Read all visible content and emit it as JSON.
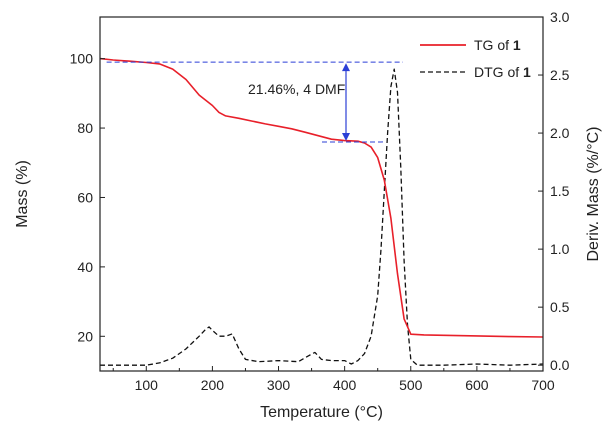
{
  "chart_data": {
    "type": "line",
    "xlabel": "Temperature (°C)",
    "ylabel_left": "Mass (%)",
    "ylabel_right": "Deriv. Mass (%/°C)",
    "xlim": [
      30,
      700
    ],
    "ylim_left": [
      10,
      112
    ],
    "ylim_right": [
      -0.05,
      3.0
    ],
    "x_ticks": [
      100,
      200,
      300,
      400,
      500,
      600,
      700
    ],
    "y_left_ticks": [
      20,
      40,
      60,
      80,
      100
    ],
    "y_right_ticks": [
      0.0,
      0.5,
      1.0,
      1.5,
      2.0,
      2.5,
      3.0
    ],
    "x_tick_labels": [
      "100",
      "200",
      "300",
      "400",
      "500",
      "600",
      "700"
    ],
    "y_left_tick_labels": [
      "20",
      "40",
      "60",
      "80",
      "100"
    ],
    "y_right_tick_labels": [
      "0.0",
      "0.5",
      "1.0",
      "1.5",
      "2.0",
      "2.5",
      "3.0"
    ],
    "legend_position": "top-right",
    "annotation": {
      "text": "21.46%, 4 DMF",
      "from_value": 99,
      "to_value": 76,
      "x": 410
    },
    "series": [
      {
        "name": "TG of 1",
        "legend_prefix": "TG of ",
        "legend_bold": "1",
        "axis": "left",
        "color": "#e8202a",
        "dash": "solid",
        "x": [
          30,
          50,
          80,
          100,
          120,
          140,
          160,
          180,
          200,
          210,
          220,
          240,
          260,
          280,
          300,
          320,
          340,
          360,
          380,
          400,
          420,
          430,
          440,
          450,
          460,
          470,
          480,
          490,
          500,
          520,
          550,
          600,
          650,
          700
        ],
        "y": [
          100,
          99.6,
          99.2,
          98.9,
          98.5,
          97.0,
          94.0,
          89.5,
          86.5,
          84.5,
          83.5,
          82.8,
          82.0,
          81.2,
          80.5,
          79.8,
          78.8,
          77.8,
          76.8,
          76.4,
          76.2,
          75.7,
          74.5,
          71.5,
          65,
          54,
          38,
          25,
          20.6,
          20.4,
          20.3,
          20.1,
          19.9,
          19.8
        ]
      },
      {
        "name": "DTG of 1",
        "legend_prefix": "DTG of ",
        "legend_bold": "1",
        "axis": "right",
        "color": "#111111",
        "dash": "dashed",
        "x": [
          30,
          100,
          120,
          140,
          160,
          180,
          190,
          195,
          200,
          210,
          220,
          230,
          240,
          250,
          270,
          300,
          330,
          345,
          355,
          365,
          380,
          400,
          410,
          420,
          430,
          440,
          450,
          455,
          460,
          465,
          470,
          475,
          480,
          485,
          490,
          495,
          500,
          510,
          550,
          600,
          650,
          700
        ],
        "y": [
          0.0,
          0.0,
          0.02,
          0.06,
          0.14,
          0.25,
          0.31,
          0.33,
          0.3,
          0.25,
          0.25,
          0.27,
          0.14,
          0.05,
          0.03,
          0.04,
          0.03,
          0.08,
          0.11,
          0.05,
          0.04,
          0.04,
          0.01,
          0.04,
          0.1,
          0.25,
          0.6,
          1.0,
          1.5,
          2.0,
          2.4,
          2.55,
          2.35,
          1.7,
          0.9,
          0.35,
          0.05,
          0.0,
          0.0,
          0.01,
          0.0,
          0.01
        ]
      }
    ]
  }
}
